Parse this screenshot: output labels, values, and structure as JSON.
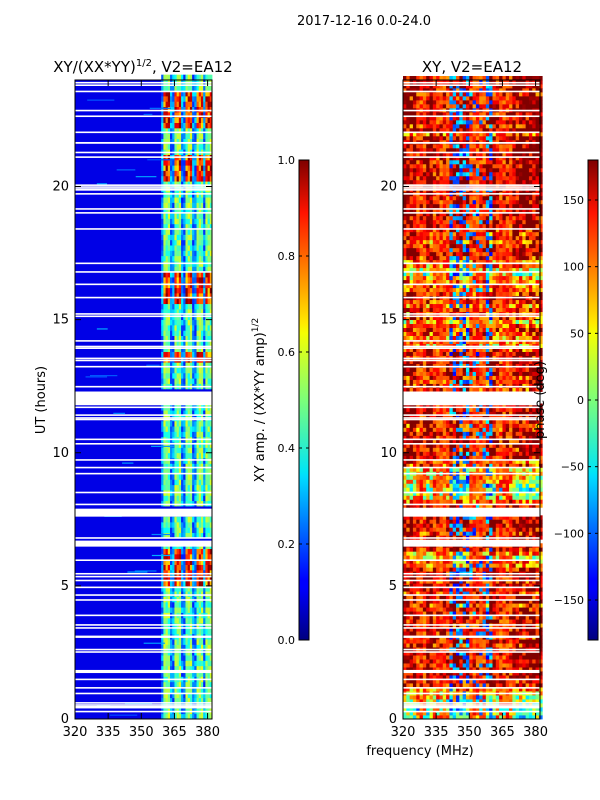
{
  "figure": {
    "suptitle": "2017-12-16 0.0-24.0",
    "xlabel_shared": "frequency (MHz)"
  },
  "chart_data": [
    {
      "type": "heatmap",
      "title": "XY/(XX*YY)^1/2, V2=EA12",
      "title_main": "XY/(XX*YY)",
      "title_sup": "1/2",
      "title_tail": ", V2=EA12",
      "xlabel": "",
      "ylabel": "UT (hours)",
      "xlim": [
        320,
        382
      ],
      "ylim": [
        0,
        24
      ],
      "xticks": [
        "320",
        "335",
        "350",
        "365",
        "380"
      ],
      "xtick_values": [
        320,
        335,
        350,
        365,
        380
      ],
      "yticks": [
        "0",
        "5",
        "10",
        "15",
        "20"
      ],
      "ytick_values": [
        0,
        5,
        10,
        15,
        20
      ],
      "colormap": "jet",
      "colorbar": {
        "label": "XY amp. / (XX*YY amp)^1/2",
        "label_main": "XY amp. / (XX*YY amp)",
        "label_sup": "1/2",
        "range": [
          0.0,
          1.0
        ],
        "ticks": [
          "0.0",
          "0.2",
          "0.4",
          "0.6",
          "0.8",
          "1.0"
        ],
        "tick_values": [
          0.0,
          0.2,
          0.4,
          0.6,
          0.8,
          1.0
        ]
      },
      "background_level": 0.1,
      "active_band_mhz": [
        359,
        382
      ],
      "bright_channels_mhz": [
        361,
        366,
        371,
        376,
        380
      ],
      "hot_periods_ut": [
        [
          15.5,
          16.7
        ],
        [
          4.9,
          6.4
        ],
        [
          20.0,
          21.0
        ],
        [
          22.0,
          23.5
        ],
        [
          13.2,
          13.6
        ]
      ],
      "flagged_gaps_ut": [
        [
          11.8,
          12.3
        ],
        [
          7.6,
          7.9
        ],
        [
          6.5,
          6.7
        ]
      ]
    },
    {
      "type": "heatmap",
      "title": "XY, V2=EA12",
      "xlabel": "frequency (MHz)",
      "ylabel": "",
      "xlim": [
        320,
        382
      ],
      "ylim": [
        0,
        24
      ],
      "xticks": [
        "320",
        "335",
        "350",
        "365",
        "380"
      ],
      "xtick_values": [
        320,
        335,
        350,
        365,
        380
      ],
      "yticks": [
        "0",
        "5",
        "10",
        "15",
        "20"
      ],
      "ytick_values": [
        0,
        5,
        10,
        15,
        20
      ],
      "colormap": "jet",
      "colorbar": {
        "label": "phase (deg)",
        "range": [
          -180,
          180
        ],
        "ticks": [
          "−150",
          "−100",
          "−50",
          "0",
          "50",
          "100",
          "150"
        ],
        "tick_values": [
          -150,
          -100,
          -50,
          0,
          50,
          100,
          150
        ]
      },
      "phase_bands_mhz": [
        [
          325,
          330
        ],
        [
          333,
          340
        ],
        [
          350,
          356
        ],
        [
          362,
          368
        ]
      ],
      "flagged_gaps_ut": [
        [
          11.8,
          12.3
        ],
        [
          7.6,
          7.9
        ],
        [
          6.5,
          6.7
        ]
      ]
    }
  ]
}
